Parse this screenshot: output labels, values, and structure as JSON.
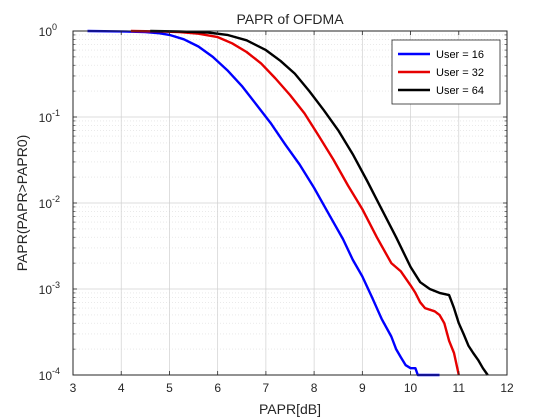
{
  "chart_data": {
    "type": "line",
    "title": "PAPR of OFDMA",
    "xlabel": "PAPR[dB]",
    "ylabel": "PAPR(PAPR>PAPR0)",
    "xlim": [
      3,
      12
    ],
    "ylim": [
      0.0001,
      1
    ],
    "yscale": "log",
    "grid": "major and minor",
    "legend_location": "top-right",
    "x_ticks": [
      {
        "value": 3,
        "label": "3"
      },
      {
        "value": 4,
        "label": "4"
      },
      {
        "value": 5,
        "label": "5"
      },
      {
        "value": 6,
        "label": "6"
      },
      {
        "value": 7,
        "label": "7"
      },
      {
        "value": 8,
        "label": "8"
      },
      {
        "value": 9,
        "label": "9"
      },
      {
        "value": 10,
        "label": "10"
      },
      {
        "value": 11,
        "label": "11"
      },
      {
        "value": 12,
        "label": "12"
      }
    ],
    "y_ticks": [
      {
        "value": 1,
        "base": "10",
        "exp": "0"
      },
      {
        "value": 0.1,
        "base": "10",
        "exp": "-1"
      },
      {
        "value": 0.01,
        "base": "10",
        "exp": "-2"
      },
      {
        "value": 0.001,
        "base": "10",
        "exp": "-3"
      },
      {
        "value": 0.0001,
        "base": "10",
        "exp": "-4"
      }
    ],
    "series": [
      {
        "name": "User = 16",
        "color": "#0000ff",
        "x": [
          3.3,
          4.0,
          4.5,
          4.8,
          5.0,
          5.3,
          5.6,
          5.9,
          6.2,
          6.5,
          6.8,
          7.1,
          7.4,
          7.7,
          8.0,
          8.3,
          8.6,
          8.8,
          9.0,
          9.2,
          9.4,
          9.6,
          9.7,
          9.8,
          9.9,
          10.0,
          10.1,
          10.15,
          10.2,
          10.6
        ],
        "y": [
          1.0,
          0.99,
          0.97,
          0.94,
          0.9,
          0.8,
          0.66,
          0.5,
          0.35,
          0.23,
          0.14,
          0.085,
          0.048,
          0.028,
          0.015,
          0.0075,
          0.0038,
          0.0022,
          0.0014,
          0.0008,
          0.00045,
          0.00028,
          0.0002,
          0.00016,
          0.00013,
          0.00012,
          0.00012,
          0.0001,
          0.0001,
          0.0001
        ]
      },
      {
        "name": "User = 32",
        "color": "#e60000",
        "x": [
          4.2,
          4.8,
          5.2,
          5.6,
          6.0,
          6.3,
          6.6,
          6.9,
          7.2,
          7.5,
          7.8,
          8.1,
          8.4,
          8.7,
          9.0,
          9.3,
          9.6,
          9.8,
          10.0,
          10.1,
          10.2,
          10.3,
          10.5,
          10.6,
          10.7,
          10.8,
          10.9,
          11.0
        ],
        "y": [
          1.0,
          0.99,
          0.97,
          0.93,
          0.85,
          0.72,
          0.57,
          0.42,
          0.28,
          0.18,
          0.11,
          0.06,
          0.032,
          0.016,
          0.0085,
          0.004,
          0.002,
          0.0016,
          0.0011,
          0.0009,
          0.0007,
          0.0006,
          0.00055,
          0.0005,
          0.0004,
          0.00025,
          0.00018,
          0.0001
        ]
      },
      {
        "name": "User = 64",
        "color": "#000000",
        "x": [
          4.6,
          5.2,
          5.8,
          6.2,
          6.6,
          7.0,
          7.3,
          7.6,
          7.9,
          8.2,
          8.5,
          8.8,
          9.1,
          9.4,
          9.7,
          10.0,
          10.2,
          10.4,
          10.6,
          10.8,
          10.9,
          11.0,
          11.1,
          11.2,
          11.3,
          11.4,
          11.5,
          11.6
        ],
        "y": [
          1.0,
          0.99,
          0.96,
          0.9,
          0.78,
          0.6,
          0.45,
          0.32,
          0.2,
          0.12,
          0.07,
          0.037,
          0.018,
          0.0085,
          0.004,
          0.0018,
          0.0012,
          0.001,
          0.0009,
          0.00085,
          0.0006,
          0.0004,
          0.0003,
          0.00022,
          0.00018,
          0.00015,
          0.00012,
          0.0001
        ]
      }
    ]
  }
}
